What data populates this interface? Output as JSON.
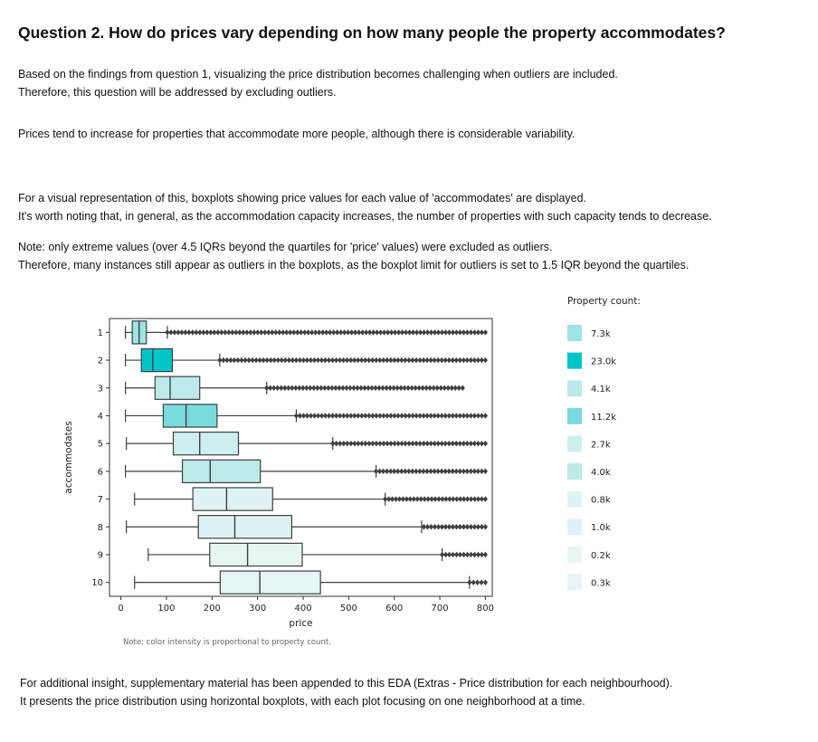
{
  "heading": "Question 2. How do prices vary depending on how many people the property accommodates?",
  "intro": {
    "line1": "Based on the findings from question 1, visualizing the price distribution becomes challenging when outliers are included.",
    "line2": "Therefore, this question will be addressed by excluding outliers."
  },
  "finding": "Prices tend to increase for properties that accommodate more people, although there is considerable variability.",
  "visual": {
    "line1": "For a visual representation of this, boxplots showing price values for each value of 'accommodates' are displayed.",
    "line2": "It's worth noting that, in general, as the accommodation capacity increases, the number of properties with such capacity tends to decrease."
  },
  "note": {
    "line1": "Note: only extreme values (over 4.5 IQRs beyond the quartiles for 'price' values) were excluded as outliers.",
    "line2": "Therefore, many instances still appear as outliers in the boxplots, as the boxplot limit for outliers is set to 1.5 IQR beyond the quartiles."
  },
  "extra": {
    "line1": "For additional insight, supplementary material has been appended to this EDA (Extras - Price distribution for each neighbourhood).",
    "line2": "It presents the price distribution using horizontal boxplots, with each plot focusing on one neighborhood at a time."
  },
  "chart_data": {
    "type": "boxplot",
    "orientation": "horizontal",
    "xlabel": "price",
    "ylabel": "accommodates",
    "xlim": [
      -25,
      815
    ],
    "xticks": [
      0,
      100,
      200,
      300,
      400,
      500,
      600,
      700,
      800
    ],
    "legend_title": "Property count:",
    "legend_placement": "right",
    "footnote": "Note: color intensity is proportional to property count.",
    "grid": false,
    "groups": [
      {
        "category": "1",
        "whisker_low": 10,
        "q1": 25,
        "median": 40,
        "q3": 56,
        "whisker_high": 102,
        "outliers_from": 102,
        "outliers_to": 800,
        "count": "7.3k",
        "color": "#9fe3e3"
      },
      {
        "category": "2",
        "whisker_low": 10,
        "q1": 45,
        "median": 70,
        "q3": 113,
        "whisker_high": 217,
        "outliers_from": 217,
        "outliers_to": 800,
        "count": "23.0k",
        "color": "#00c5c8"
      },
      {
        "category": "3",
        "whisker_low": 10,
        "q1": 75,
        "median": 108,
        "q3": 173,
        "whisker_high": 320,
        "outliers_from": 320,
        "outliers_to": 750,
        "count": "4.1k",
        "color": "#bde9ea"
      },
      {
        "category": "4",
        "whisker_low": 10,
        "q1": 93,
        "median": 143,
        "q3": 211,
        "whisker_high": 385,
        "outliers_from": 385,
        "outliers_to": 800,
        "count": "11.2k",
        "color": "#79dbdc"
      },
      {
        "category": "5",
        "whisker_low": 12,
        "q1": 115,
        "median": 173,
        "q3": 258,
        "whisker_high": 465,
        "outliers_from": 465,
        "outliers_to": 800,
        "count": "2.7k",
        "color": "#cdeeef"
      },
      {
        "category": "6",
        "whisker_low": 10,
        "q1": 135,
        "median": 196,
        "q3": 306,
        "whisker_high": 560,
        "outliers_from": 560,
        "outliers_to": 800,
        "count": "4.0k",
        "color": "#bce9ea"
      },
      {
        "category": "7",
        "whisker_low": 30,
        "q1": 158,
        "median": 232,
        "q3": 333,
        "whisker_high": 580,
        "outliers_from": 580,
        "outliers_to": 800,
        "count": "0.8k",
        "color": "#e0f3f4"
      },
      {
        "category": "8",
        "whisker_low": 12,
        "q1": 170,
        "median": 250,
        "q3": 375,
        "whisker_high": 660,
        "outliers_from": 665,
        "outliers_to": 800,
        "count": "1.0k",
        "color": "#ddf2f2"
      },
      {
        "category": "9",
        "whisker_low": 60,
        "q1": 195,
        "median": 278,
        "q3": 398,
        "whisker_high": 705,
        "outliers_from": 705,
        "outliers_to": 800,
        "count": "0.2k",
        "color": "#e8f5f5"
      },
      {
        "category": "10",
        "whisker_low": 30,
        "q1": 218,
        "median": 305,
        "q3": 438,
        "whisker_high": 765,
        "outliers_from": 765,
        "outliers_to": 800,
        "count": "0.3k",
        "color": "#e5f4f4"
      }
    ]
  }
}
